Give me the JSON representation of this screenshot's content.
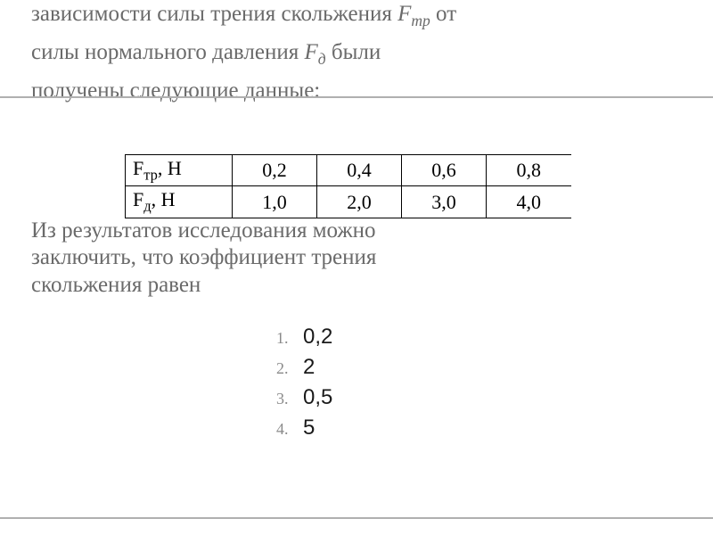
{
  "intro": {
    "line1_pre": "зависимости силы трения скольжения ",
    "line1_var": "F",
    "line1_sub": "тр",
    "line1_post": " от",
    "line2_pre": "силы нормального давления ",
    "line2_var": "F",
    "line2_sub": "д",
    "line2_post": " были",
    "line3": "получены следующие данные:"
  },
  "table": {
    "row1": {
      "label_var": "F",
      "label_sub": "тр",
      "label_unit": ", Н",
      "c1": "0,2",
      "c2": "0,4",
      "c3": "0,6",
      "c4": "0,8"
    },
    "row2": {
      "label_var": "F",
      "label_sub": "д",
      "label_unit": ", Н",
      "c1": "1,0",
      "c2": "2,0",
      "c3": "3,0",
      "c4": "4,0"
    }
  },
  "conclusion": {
    "line1": "Из результатов исследования можно",
    "line2": "заключить, что коэффициент трения",
    "line3": "скольжения равен"
  },
  "options": [
    {
      "num": "1.",
      "val": "0,2"
    },
    {
      "num": "2.",
      "val": "2"
    },
    {
      "num": "3.",
      "val": "0,5"
    },
    {
      "num": "4.",
      "val": "5"
    }
  ],
  "styles": {
    "text_color": "#6a6a6a",
    "option_num_color": "#8a8a8a",
    "option_val_color": "#1a1a1a",
    "divider_color": "#b0b0b0",
    "table_border": "#000000",
    "body_fontsize": 25,
    "option_num_fontsize": 18,
    "option_val_fontsize": 24,
    "table_fontsize": 22
  }
}
